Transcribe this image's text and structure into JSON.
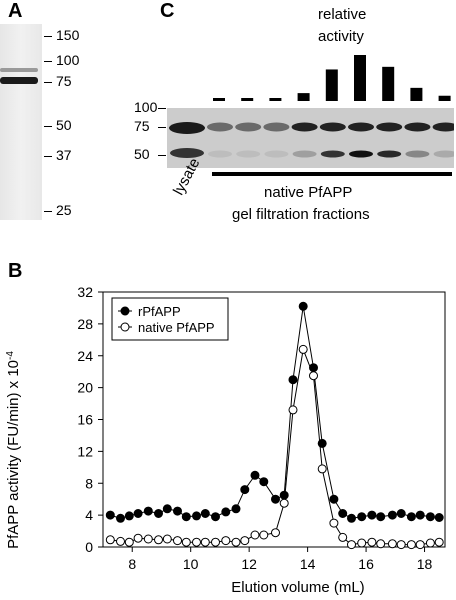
{
  "panel_a": {
    "letter": "A",
    "markers": [
      {
        "label": "150",
        "kda": 150
      },
      {
        "label": "100",
        "kda": 100
      },
      {
        "label": "75",
        "kda": 75
      },
      {
        "label": "50",
        "kda": 50
      },
      {
        "label": "37",
        "kda": 37
      },
      {
        "label": "25",
        "kda": 25
      }
    ]
  },
  "panel_c": {
    "letter": "C",
    "title_line1": "relative",
    "title_line2": "activity",
    "markers": [
      {
        "label": "100",
        "kda": 100
      },
      {
        "label": "75",
        "kda": 75
      },
      {
        "label": "50",
        "kda": 50
      }
    ],
    "lane_lysate_label": "lysate",
    "fractions_label_line1": "native PfAPP",
    "fractions_label_line2": "gel filtration fractions",
    "relative_activity": [
      0.02,
      0.02,
      0.02,
      0.12,
      0.48,
      0.7,
      0.52,
      0.2,
      0.08
    ]
  },
  "panel_b": {
    "letter": "B",
    "chart_data": {
      "type": "line",
      "xlabel": "Elution volume (mL)",
      "ylabel": "PfAPP activity (FU/min) x 10",
      "ylabel_exponent": "-4",
      "xlim": [
        7,
        18.7
      ],
      "ylim": [
        0,
        32
      ],
      "xticks": [
        8,
        10,
        12,
        14,
        16,
        18
      ],
      "yticks": [
        0,
        4,
        8,
        12,
        16,
        20,
        24,
        28,
        32
      ],
      "legend_position": "top-left",
      "series": [
        {
          "name": "rPfAPP",
          "marker": "filled-circle",
          "x": [
            7.25,
            7.6,
            7.9,
            8.2,
            8.55,
            8.9,
            9.2,
            9.55,
            9.85,
            10.2,
            10.5,
            10.85,
            11.2,
            11.55,
            11.85,
            12.2,
            12.5,
            12.9,
            13.2,
            13.5,
            13.85,
            14.2,
            14.5,
            14.9,
            15.2,
            15.5,
            15.85,
            16.2,
            16.5,
            16.9,
            17.2,
            17.55,
            17.85,
            18.2,
            18.5
          ],
          "y": [
            4.0,
            3.6,
            3.9,
            4.2,
            4.5,
            4.2,
            4.8,
            4.5,
            3.8,
            3.9,
            4.2,
            3.8,
            4.4,
            4.8,
            7.2,
            9.0,
            8.2,
            6.0,
            6.5,
            21.0,
            30.2,
            22.5,
            13.0,
            6.0,
            4.2,
            3.6,
            3.8,
            4.0,
            3.8,
            4.0,
            4.2,
            3.8,
            4.0,
            3.8,
            3.7
          ]
        },
        {
          "name": "native PfAPP",
          "marker": "open-circle",
          "x": [
            7.25,
            7.6,
            7.9,
            8.2,
            8.55,
            8.9,
            9.2,
            9.55,
            9.85,
            10.2,
            10.5,
            10.85,
            11.2,
            11.55,
            11.85,
            12.2,
            12.5,
            12.9,
            13.2,
            13.5,
            13.85,
            14.2,
            14.5,
            14.9,
            15.2,
            15.5,
            15.85,
            16.2,
            16.5,
            16.9,
            17.2,
            17.55,
            17.85,
            18.2,
            18.5
          ],
          "y": [
            0.9,
            0.7,
            0.6,
            1.1,
            1.0,
            0.9,
            1.0,
            0.8,
            0.6,
            0.6,
            0.6,
            0.6,
            0.8,
            0.6,
            0.8,
            1.5,
            1.5,
            1.8,
            5.5,
            17.2,
            24.8,
            21.5,
            9.8,
            3.0,
            1.2,
            0.3,
            0.5,
            0.6,
            0.4,
            0.4,
            0.3,
            0.3,
            0.3,
            0.5,
            0.6
          ]
        }
      ]
    }
  }
}
